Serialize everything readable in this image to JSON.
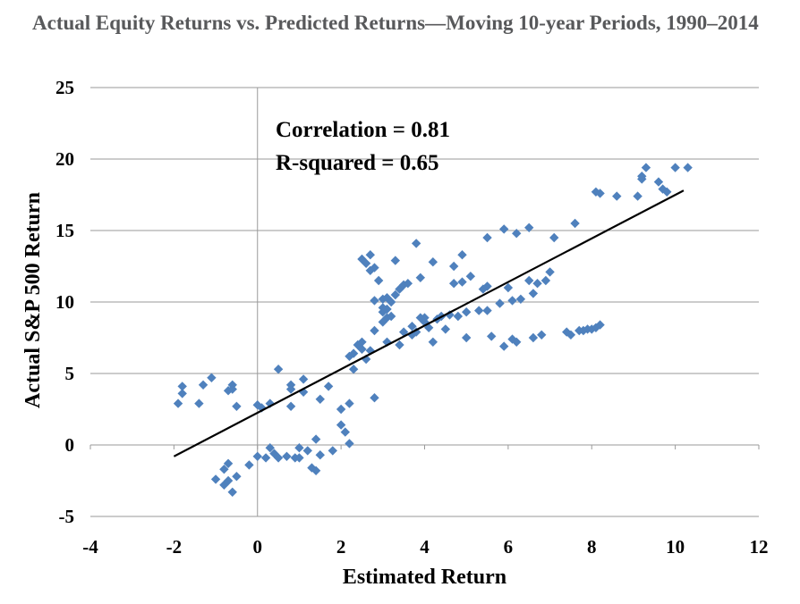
{
  "chart_data": {
    "type": "scatter",
    "title": "Actual Equity Returns vs. Predicted Returns—Moving 10-year Periods, 1990–2014",
    "xlabel": "Estimated Return",
    "ylabel": "Actual S&P 500 Return",
    "xlim": [
      -4,
      12
    ],
    "ylim": [
      -5,
      25
    ],
    "xticks": [
      "-4",
      "-2",
      "0",
      "2",
      "4",
      "6",
      "8",
      "10",
      "12"
    ],
    "yticks": [
      "-5",
      "0",
      "5",
      "10",
      "15",
      "20",
      "25"
    ],
    "annotations": [
      "Correlation = 0.81",
      "R-squared = 0.65"
    ],
    "trendline": {
      "x": [
        -2.0,
        10.2
      ],
      "y": [
        -0.8,
        17.8
      ]
    },
    "marker_color": "#4f81bd",
    "grid": "horizontal",
    "legend": "none",
    "series": [
      {
        "points": [
          [
            -1.9,
            2.9
          ],
          [
            -1.8,
            3.6
          ],
          [
            -1.8,
            4.1
          ],
          [
            -1.4,
            2.9
          ],
          [
            -1.3,
            4.2
          ],
          [
            -1.1,
            4.7
          ],
          [
            -0.7,
            3.8
          ],
          [
            -0.6,
            4.2
          ],
          [
            -0.5,
            2.7
          ],
          [
            -0.6,
            3.9
          ],
          [
            -1.0,
            -2.4
          ],
          [
            -0.8,
            -2.8
          ],
          [
            -0.7,
            -2.5
          ],
          [
            -0.6,
            -3.3
          ],
          [
            -0.8,
            -1.7
          ],
          [
            -0.7,
            -1.3
          ],
          [
            -0.5,
            -2.2
          ],
          [
            -0.2,
            -1.4
          ],
          [
            0.0,
            -0.8
          ],
          [
            0.0,
            2.8
          ],
          [
            0.1,
            2.6
          ],
          [
            0.2,
            -0.9
          ],
          [
            0.3,
            -0.2
          ],
          [
            0.3,
            2.9
          ],
          [
            0.4,
            -0.6
          ],
          [
            0.5,
            -0.9
          ],
          [
            0.5,
            5.3
          ],
          [
            0.7,
            -0.8
          ],
          [
            0.8,
            3.9
          ],
          [
            0.8,
            4.2
          ],
          [
            0.8,
            2.7
          ],
          [
            0.9,
            -0.9
          ],
          [
            1.0,
            -0.2
          ],
          [
            1.0,
            -0.9
          ],
          [
            1.1,
            4.6
          ],
          [
            1.1,
            3.7
          ],
          [
            1.2,
            -0.4
          ],
          [
            1.3,
            -1.6
          ],
          [
            1.4,
            0.4
          ],
          [
            1.4,
            -1.8
          ],
          [
            1.5,
            -0.7
          ],
          [
            1.5,
            3.2
          ],
          [
            1.7,
            4.1
          ],
          [
            1.8,
            -0.4
          ],
          [
            2.0,
            1.4
          ],
          [
            2.0,
            2.5
          ],
          [
            2.1,
            0.9
          ],
          [
            2.2,
            2.9
          ],
          [
            2.2,
            0.1
          ],
          [
            2.2,
            6.2
          ],
          [
            2.3,
            6.4
          ],
          [
            2.3,
            5.3
          ],
          [
            2.4,
            7.0
          ],
          [
            2.5,
            7.2
          ],
          [
            2.5,
            6.7
          ],
          [
            2.6,
            6.0
          ],
          [
            2.7,
            6.6
          ],
          [
            2.8,
            8.0
          ],
          [
            2.8,
            3.3
          ],
          [
            2.5,
            13.0
          ],
          [
            2.6,
            12.7
          ],
          [
            2.7,
            13.3
          ],
          [
            2.7,
            12.2
          ],
          [
            2.8,
            12.4
          ],
          [
            2.8,
            10.1
          ],
          [
            2.9,
            11.5
          ],
          [
            3.0,
            10.2
          ],
          [
            3.0,
            9.6
          ],
          [
            3.0,
            9.3
          ],
          [
            3.0,
            8.6
          ],
          [
            3.1,
            10.3
          ],
          [
            3.1,
            9.5
          ],
          [
            3.1,
            8.9
          ],
          [
            3.1,
            7.2
          ],
          [
            3.2,
            9.0
          ],
          [
            3.2,
            10.0
          ],
          [
            3.3,
            12.9
          ],
          [
            3.3,
            10.5
          ],
          [
            3.4,
            10.9
          ],
          [
            3.4,
            7.0
          ],
          [
            3.5,
            11.2
          ],
          [
            3.5,
            7.9
          ],
          [
            3.6,
            11.3
          ],
          [
            3.7,
            7.7
          ],
          [
            3.7,
            8.3
          ],
          [
            3.8,
            7.9
          ],
          [
            3.8,
            14.1
          ],
          [
            3.9,
            11.7
          ],
          [
            3.9,
            8.9
          ],
          [
            4.0,
            8.6
          ],
          [
            4.0,
            8.9
          ],
          [
            4.1,
            8.2
          ],
          [
            4.2,
            12.8
          ],
          [
            4.2,
            7.2
          ],
          [
            4.3,
            8.8
          ],
          [
            4.4,
            9.0
          ],
          [
            4.5,
            8.1
          ],
          [
            4.6,
            9.1
          ],
          [
            4.7,
            12.5
          ],
          [
            4.7,
            11.3
          ],
          [
            4.8,
            9.0
          ],
          [
            4.9,
            13.3
          ],
          [
            4.9,
            11.4
          ],
          [
            5.0,
            9.3
          ],
          [
            5.0,
            7.5
          ],
          [
            5.1,
            11.8
          ],
          [
            5.3,
            9.4
          ],
          [
            5.4,
            10.9
          ],
          [
            5.5,
            11.1
          ],
          [
            5.5,
            9.4
          ],
          [
            5.5,
            14.5
          ],
          [
            5.6,
            7.6
          ],
          [
            5.8,
            9.9
          ],
          [
            5.9,
            15.1
          ],
          [
            5.9,
            6.9
          ],
          [
            6.0,
            11.0
          ],
          [
            6.1,
            7.4
          ],
          [
            6.1,
            10.1
          ],
          [
            6.2,
            7.2
          ],
          [
            6.2,
            14.8
          ],
          [
            6.3,
            10.2
          ],
          [
            6.5,
            15.2
          ],
          [
            6.5,
            11.5
          ],
          [
            6.6,
            10.6
          ],
          [
            6.6,
            7.5
          ],
          [
            6.7,
            11.3
          ],
          [
            6.8,
            7.7
          ],
          [
            6.9,
            11.5
          ],
          [
            7.0,
            12.1
          ],
          [
            7.1,
            14.5
          ],
          [
            7.4,
            7.9
          ],
          [
            7.5,
            7.7
          ],
          [
            7.6,
            15.5
          ],
          [
            7.7,
            8.0
          ],
          [
            7.8,
            8.0
          ],
          [
            7.9,
            8.1
          ],
          [
            8.0,
            8.1
          ],
          [
            8.1,
            8.2
          ],
          [
            8.1,
            17.7
          ],
          [
            8.2,
            17.6
          ],
          [
            8.2,
            8.4
          ],
          [
            8.6,
            17.4
          ],
          [
            9.1,
            17.4
          ],
          [
            9.2,
            18.8
          ],
          [
            9.2,
            18.6
          ],
          [
            9.3,
            19.4
          ],
          [
            9.6,
            18.4
          ],
          [
            9.7,
            17.9
          ],
          [
            9.8,
            17.7
          ],
          [
            10.0,
            19.4
          ],
          [
            10.3,
            19.4
          ]
        ]
      }
    ]
  }
}
